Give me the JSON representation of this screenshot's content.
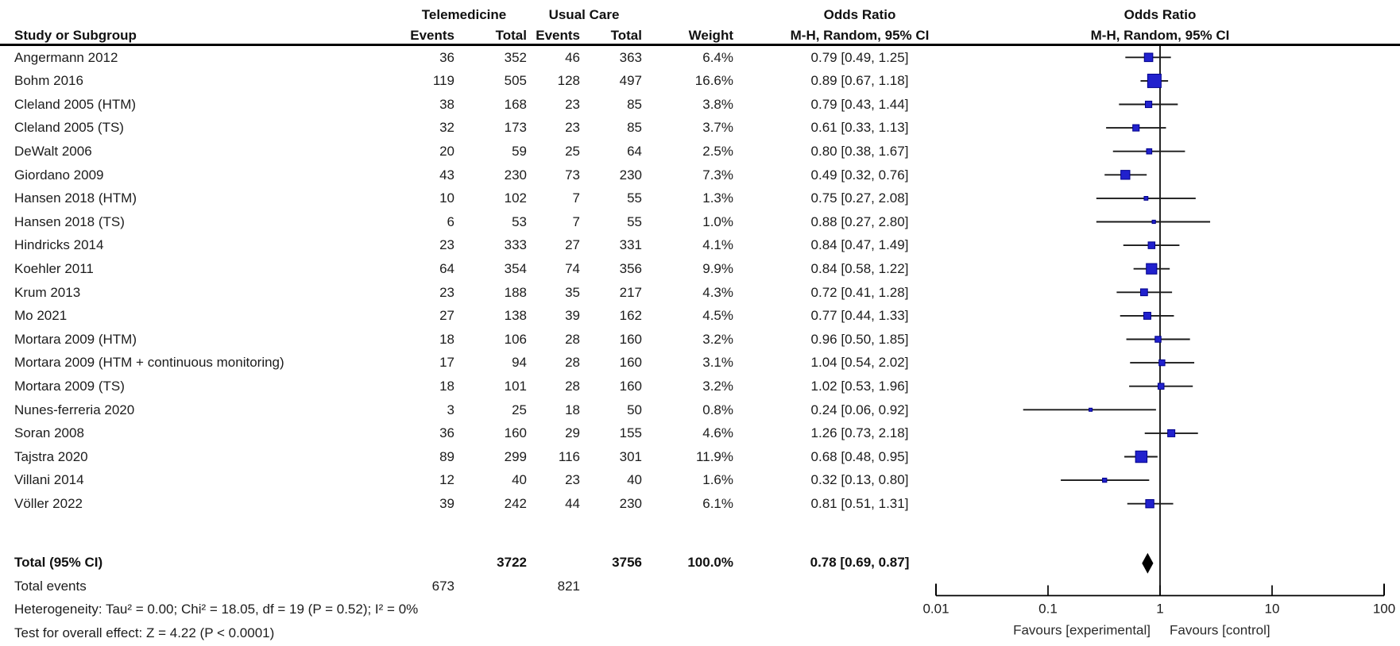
{
  "header": {
    "group1_label": "Telemedicine",
    "group2_label": "Usual Care",
    "study_col_label": "Study or Subgroup",
    "events_label_1": "Events",
    "total_label_1": "Total",
    "events_label_2": "Events",
    "total_label_2": "Total",
    "weight_label": "Weight",
    "or_text_col_title": "Odds Ratio",
    "or_text_col_subtitle": "M-H, Random, 95% CI",
    "or_plot_col_title": "Odds Ratio",
    "or_plot_col_subtitle": "M-H, Random, 95% CI"
  },
  "chart_data": {
    "type": "forest",
    "effect_measure": "Odds Ratio (M-H, Random, 95% CI)",
    "x_scale": "log",
    "x_ticks": [
      0.01,
      0.1,
      1,
      10,
      100
    ],
    "x_tick_labels": [
      "0.01",
      "0.1",
      "1",
      "10",
      "100"
    ],
    "favours_left": "Favours [experimental]",
    "favours_right": "Favours [control]",
    "studies": [
      {
        "name": "Angermann 2012",
        "e1": "36",
        "t1": "352",
        "e2": "46",
        "t2": "363",
        "weight": "6.4%",
        "weight_val": 6.4,
        "or": 0.79,
        "lo": 0.49,
        "hi": 1.25,
        "or_label": "0.79 [0.49, 1.25]"
      },
      {
        "name": "Bohm 2016",
        "e1": "119",
        "t1": "505",
        "e2": "128",
        "t2": "497",
        "weight": "16.6%",
        "weight_val": 16.6,
        "or": 0.89,
        "lo": 0.67,
        "hi": 1.18,
        "or_label": "0.89 [0.67, 1.18]"
      },
      {
        "name": "Cleland 2005 (HTM)",
        "e1": "38",
        "t1": "168",
        "e2": "23",
        "t2": "85",
        "weight": "3.8%",
        "weight_val": 3.8,
        "or": 0.79,
        "lo": 0.43,
        "hi": 1.44,
        "or_label": "0.79 [0.43, 1.44]"
      },
      {
        "name": "Cleland 2005 (TS)",
        "e1": "32",
        "t1": "173",
        "e2": "23",
        "t2": "85",
        "weight": "3.7%",
        "weight_val": 3.7,
        "or": 0.61,
        "lo": 0.33,
        "hi": 1.13,
        "or_label": "0.61 [0.33, 1.13]"
      },
      {
        "name": "DeWalt 2006",
        "e1": "20",
        "t1": "59",
        "e2": "25",
        "t2": "64",
        "weight": "2.5%",
        "weight_val": 2.5,
        "or": 0.8,
        "lo": 0.38,
        "hi": 1.67,
        "or_label": "0.80 [0.38, 1.67]"
      },
      {
        "name": "Giordano 2009",
        "e1": "43",
        "t1": "230",
        "e2": "73",
        "t2": "230",
        "weight": "7.3%",
        "weight_val": 7.3,
        "or": 0.49,
        "lo": 0.32,
        "hi": 0.76,
        "or_label": "0.49 [0.32, 0.76]"
      },
      {
        "name": "Hansen 2018 (HTM)",
        "e1": "10",
        "t1": "102",
        "e2": "7",
        "t2": "55",
        "weight": "1.3%",
        "weight_val": 1.3,
        "or": 0.75,
        "lo": 0.27,
        "hi": 2.08,
        "or_label": "0.75 [0.27, 2.08]"
      },
      {
        "name": "Hansen 2018 (TS)",
        "e1": "6",
        "t1": "53",
        "e2": "7",
        "t2": "55",
        "weight": "1.0%",
        "weight_val": 1.0,
        "or": 0.88,
        "lo": 0.27,
        "hi": 2.8,
        "or_label": "0.88 [0.27, 2.80]"
      },
      {
        "name": "Hindricks 2014",
        "e1": "23",
        "t1": "333",
        "e2": "27",
        "t2": "331",
        "weight": "4.1%",
        "weight_val": 4.1,
        "or": 0.84,
        "lo": 0.47,
        "hi": 1.49,
        "or_label": "0.84 [0.47, 1.49]"
      },
      {
        "name": "Koehler 2011",
        "e1": "64",
        "t1": "354",
        "e2": "74",
        "t2": "356",
        "weight": "9.9%",
        "weight_val": 9.9,
        "or": 0.84,
        "lo": 0.58,
        "hi": 1.22,
        "or_label": "0.84 [0.58, 1.22]"
      },
      {
        "name": "Krum 2013",
        "e1": "23",
        "t1": "188",
        "e2": "35",
        "t2": "217",
        "weight": "4.3%",
        "weight_val": 4.3,
        "or": 0.72,
        "lo": 0.41,
        "hi": 1.28,
        "or_label": "0.72 [0.41, 1.28]"
      },
      {
        "name": "Mo 2021",
        "e1": "27",
        "t1": "138",
        "e2": "39",
        "t2": "162",
        "weight": "4.5%",
        "weight_val": 4.5,
        "or": 0.77,
        "lo": 0.44,
        "hi": 1.33,
        "or_label": "0.77 [0.44, 1.33]"
      },
      {
        "name": "Mortara 2009 (HTM)",
        "e1": "18",
        "t1": "106",
        "e2": "28",
        "t2": "160",
        "weight": "3.2%",
        "weight_val": 3.2,
        "or": 0.96,
        "lo": 0.5,
        "hi": 1.85,
        "or_label": "0.96 [0.50, 1.85]"
      },
      {
        "name": "Mortara 2009 (HTM + continuous monitoring)",
        "e1": "17",
        "t1": "94",
        "e2": "28",
        "t2": "160",
        "weight": "3.1%",
        "weight_val": 3.1,
        "or": 1.04,
        "lo": 0.54,
        "hi": 2.02,
        "or_label": "1.04 [0.54, 2.02]"
      },
      {
        "name": "Mortara 2009 (TS)",
        "e1": "18",
        "t1": "101",
        "e2": "28",
        "t2": "160",
        "weight": "3.2%",
        "weight_val": 3.2,
        "or": 1.02,
        "lo": 0.53,
        "hi": 1.96,
        "or_label": "1.02 [0.53, 1.96]"
      },
      {
        "name": "Nunes-ferreria 2020",
        "e1": "3",
        "t1": "25",
        "e2": "18",
        "t2": "50",
        "weight": "0.8%",
        "weight_val": 0.8,
        "or": 0.24,
        "lo": 0.06,
        "hi": 0.92,
        "or_label": "0.24 [0.06, 0.92]"
      },
      {
        "name": "Soran 2008",
        "e1": "36",
        "t1": "160",
        "e2": "29",
        "t2": "155",
        "weight": "4.6%",
        "weight_val": 4.6,
        "or": 1.26,
        "lo": 0.73,
        "hi": 2.18,
        "or_label": "1.26 [0.73, 2.18]"
      },
      {
        "name": "Tajstra 2020",
        "e1": "89",
        "t1": "299",
        "e2": "116",
        "t2": "301",
        "weight": "11.9%",
        "weight_val": 11.9,
        "or": 0.68,
        "lo": 0.48,
        "hi": 0.95,
        "or_label": "0.68 [0.48, 0.95]"
      },
      {
        "name": "Villani 2014",
        "e1": "12",
        "t1": "40",
        "e2": "23",
        "t2": "40",
        "weight": "1.6%",
        "weight_val": 1.6,
        "or": 0.32,
        "lo": 0.13,
        "hi": 0.8,
        "or_label": "0.32 [0.13, 0.80]"
      },
      {
        "name": "Völler 2022",
        "e1": "39",
        "t1": "242",
        "e2": "44",
        "t2": "230",
        "weight": "6.1%",
        "weight_val": 6.1,
        "or": 0.81,
        "lo": 0.51,
        "hi": 1.31,
        "or_label": "0.81 [0.51, 1.31]"
      }
    ],
    "total": {
      "label": "Total (95% CI)",
      "t1": "3722",
      "t2": "3756",
      "weight": "100.0%",
      "or": 0.78,
      "lo": 0.69,
      "hi": 0.87,
      "or_label": "0.78 [0.69, 0.87]"
    },
    "total_events": {
      "label": "Total events",
      "e1": "673",
      "e2": "821"
    },
    "heterogeneity_text": "Heterogeneity: Tau² = 0.00; Chi² = 18.05, df = 19 (P = 0.52); I² = 0%",
    "overall_effect_text": "Test for overall effect: Z = 4.22 (P < 0.0001)",
    "colors": {
      "marker_fill": "#2121cd",
      "marker_border": "#00008b",
      "ci_line": "#1a1a1a",
      "diamond": "#000000",
      "axis": "#000000"
    }
  }
}
